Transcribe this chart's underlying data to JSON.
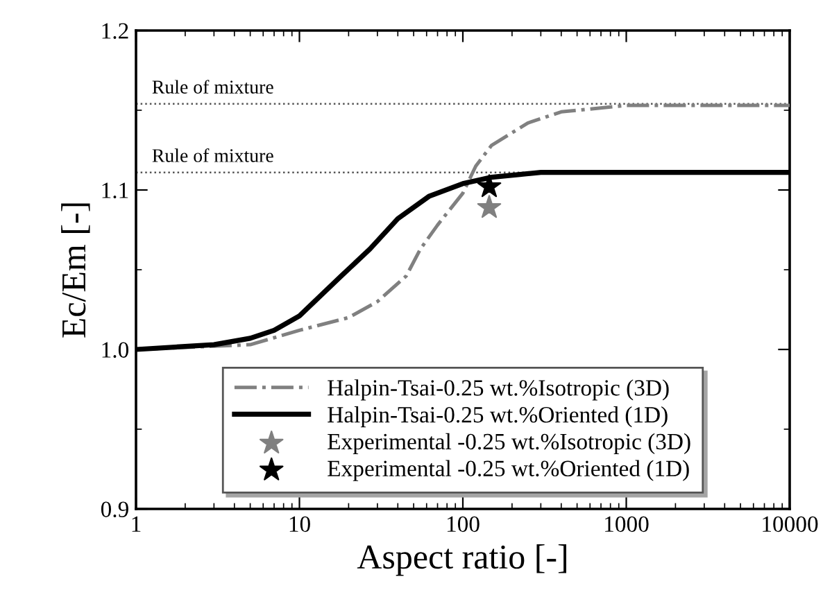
{
  "chart_data": {
    "type": "line",
    "xlabel": "Aspect ratio [-]",
    "ylabel": "Ec/Em [-]",
    "log": "x",
    "xlim": [
      1,
      10000
    ],
    "xticks": [
      1,
      10,
      100,
      1000,
      10000
    ],
    "ylim": [
      0.9,
      1.2
    ],
    "yticks": [
      {
        "value": 0.9,
        "label": "0.9"
      },
      {
        "value": 1.0,
        "label": "1.0"
      },
      {
        "value": 1.1,
        "label": "1.1"
      },
      {
        "value": 1.2,
        "label": "1.2"
      }
    ],
    "grid": false,
    "legend": "bottom",
    "ref_lines": [
      {
        "axis": "y",
        "value": 1.154,
        "label": "Rule of mixture",
        "color": "#555555",
        "line_style": "dotted"
      },
      {
        "axis": "y",
        "value": 1.111,
        "label": "Rule of mixture",
        "color": "#555555",
        "line_style": "dotted"
      }
    ],
    "series": [
      {
        "name": "Halpin-Tsai-0.25 wt.%Isotropic (3D)",
        "color": "#808080",
        "line_style": "dashdot",
        "marker": "none",
        "x": [
          1,
          5,
          10,
          20,
          30,
          45,
          55,
          70,
          100,
          120,
          150,
          250,
          400,
          1000,
          10000
        ],
        "values": [
          1.0,
          1.003,
          1.012,
          1.02,
          1.03,
          1.046,
          1.063,
          1.078,
          1.098,
          1.115,
          1.128,
          1.142,
          1.149,
          1.153,
          1.153
        ]
      },
      {
        "name": "Halpin-Tsai-0.25 wt.%Oriented (1D)",
        "color": "#000000",
        "line_style": "solid",
        "marker": "none",
        "x": [
          1,
          3,
          5,
          7,
          10,
          18,
          27,
          40,
          62,
          100,
          150,
          300,
          10000
        ],
        "values": [
          1.0,
          1.003,
          1.007,
          1.012,
          1.021,
          1.046,
          1.063,
          1.082,
          1.096,
          1.104,
          1.108,
          1.111,
          1.111
        ]
      },
      {
        "name": "Experimental -0.25 wt.%Isotropic (3D)",
        "type": "scatter",
        "color": "#808080",
        "marker": "star",
        "x": [
          145
        ],
        "values": [
          1.089
        ]
      },
      {
        "name": "Experimental -0.25 wt.%Oriented (1D)",
        "type": "scatter",
        "color": "#000000",
        "marker": "star",
        "x": [
          145
        ],
        "values": [
          1.102
        ]
      }
    ]
  }
}
